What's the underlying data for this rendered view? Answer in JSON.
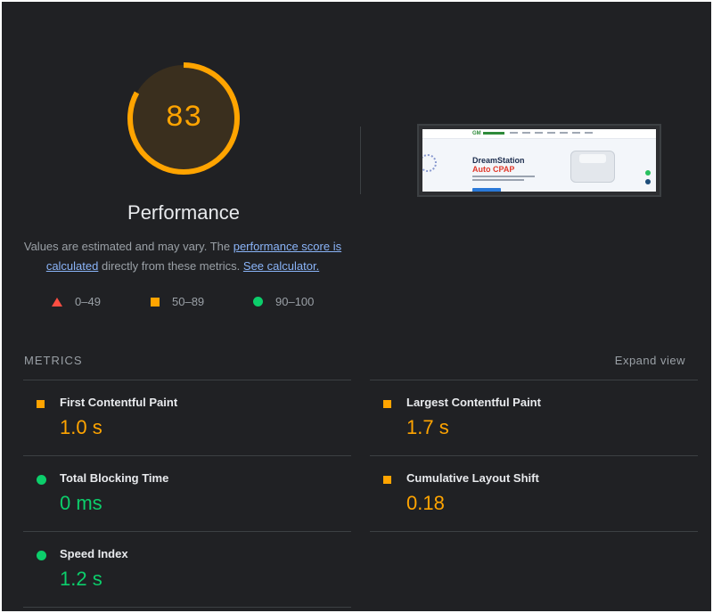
{
  "performance": {
    "score": "83",
    "score_fraction": 0.83,
    "title": "Performance",
    "colors": {
      "score": "#ffa400",
      "pass": "#0cce6b",
      "fail": "#ff4e42"
    }
  },
  "description": {
    "text1": "Values are estimated and may vary. The ",
    "link1": "performance score is calculated",
    "text2": " directly from these metrics. ",
    "link2": "See calculator."
  },
  "legend": [
    {
      "icon": "red-triangle-icon",
      "label": "0–49"
    },
    {
      "icon": "orange-square-icon",
      "label": "50–89"
    },
    {
      "icon": "green-circle-icon",
      "label": "90–100"
    }
  ],
  "screenshot": {
    "heading_line1": "DreamStation",
    "heading_line2": "Auto CPAP",
    "logo": "GM"
  },
  "metrics_section": {
    "title": "METRICS",
    "expand_label": "Expand view"
  },
  "metrics": [
    {
      "label": "First Contentful Paint",
      "value": "1.0 s",
      "status": "average"
    },
    {
      "label": "Largest Contentful Paint",
      "value": "1.7 s",
      "status": "average"
    },
    {
      "label": "Total Blocking Time",
      "value": "0 ms",
      "status": "pass"
    },
    {
      "label": "Cumulative Layout Shift",
      "value": "0.18",
      "status": "average"
    },
    {
      "label": "Speed Index",
      "value": "1.2 s",
      "status": "pass"
    }
  ]
}
